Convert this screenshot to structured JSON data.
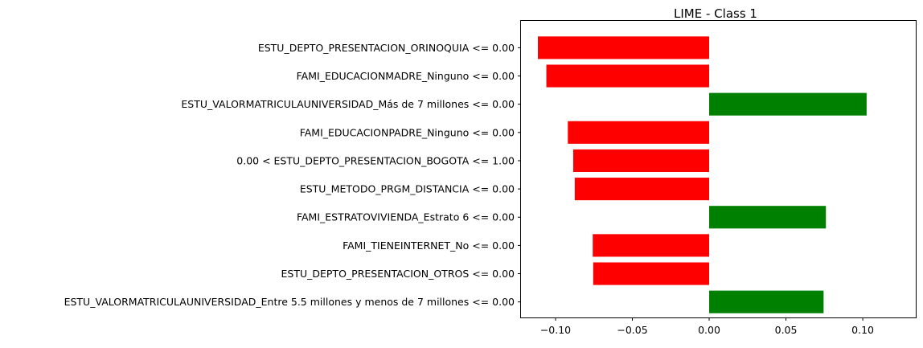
{
  "chart_data": {
    "type": "bar",
    "orientation": "horizontal",
    "title": "LIME - Class 1",
    "xlabel": "",
    "ylabel": "",
    "xlim": [
      -0.1225,
      0.1345
    ],
    "xticks": [
      -0.1,
      -0.05,
      0.0,
      0.05,
      0.1
    ],
    "xtick_labels": [
      "−0.10",
      "−0.05",
      "0.00",
      "0.05",
      "0.10"
    ],
    "grid": false,
    "legend": "none",
    "colors": {
      "positive": "#008000",
      "negative": "#ff0000"
    },
    "categories": [
      "ESTU_DEPTO_PRESENTACION_ORINOQUIA <= 0.00",
      "FAMI_EDUCACIONMADRE_Ninguno <= 0.00",
      "ESTU_VALORMATRICULAUNIVERSIDAD_Más de 7 millones <= 0.00",
      "FAMI_EDUCACIONPADRE_Ninguno <= 0.00",
      "0.00 < ESTU_DEPTO_PRESENTACION_BOGOTA <= 1.00",
      "ESTU_METODO_PRGM_DISTANCIA <= 0.00",
      "FAMI_ESTRATOVIVIENDA_Estrato 6 <= 0.00",
      "FAMI_TIENEINTERNET_No <= 0.00",
      "ESTU_DEPTO_PRESENTACION_OTROS <= 0.00",
      "ESTU_VALORMATRICULAUNIVERSIDAD_Entre 5.5 millones y menos de 7 millones <= 0.00"
    ],
    "values": [
      -0.1115,
      -0.106,
      0.1025,
      -0.092,
      -0.0885,
      -0.0875,
      0.076,
      -0.0758,
      -0.0755,
      0.0745
    ]
  }
}
